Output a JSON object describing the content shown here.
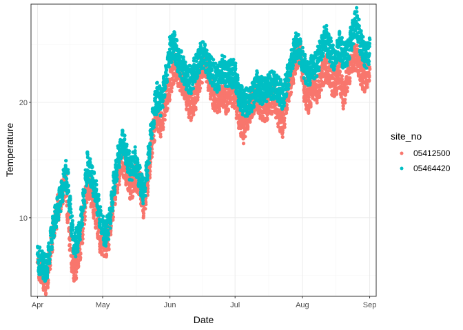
{
  "chart_data": {
    "type": "scatter",
    "xlabel": "Date",
    "ylabel": "Temperature",
    "x_ticks": [
      {
        "date": "2021-04-01",
        "label": "Apr"
      },
      {
        "date": "2021-05-01",
        "label": "May"
      },
      {
        "date": "2021-06-01",
        "label": "Jun"
      },
      {
        "date": "2021-07-01",
        "label": "Jul"
      },
      {
        "date": "2021-08-01",
        "label": "Aug"
      },
      {
        "date": "2021-09-01",
        "label": "Sep"
      }
    ],
    "y_ticks": [
      10,
      20
    ],
    "xlim": [
      "2021-03-29",
      "2021-09-04"
    ],
    "ylim": [
      3.2,
      28.5
    ],
    "grid": true,
    "legend_title": "site_no",
    "legend_position": "right",
    "series": [
      {
        "name": "05412500",
        "color": "#F8766D",
        "points": [
          [
            "2021-04-01",
            6.0
          ],
          [
            "2021-04-03",
            5.3
          ],
          [
            "2021-04-05",
            4.3
          ],
          [
            "2021-04-06",
            5.5
          ],
          [
            "2021-04-08",
            8.5
          ],
          [
            "2021-04-10",
            10.5
          ],
          [
            "2021-04-12",
            12.0
          ],
          [
            "2021-04-14",
            13.0
          ],
          [
            "2021-04-15",
            10.0
          ],
          [
            "2021-04-17",
            6.0
          ],
          [
            "2021-04-18",
            5.5
          ],
          [
            "2021-04-20",
            6.5
          ],
          [
            "2021-04-22",
            9.5
          ],
          [
            "2021-04-24",
            13.0
          ],
          [
            "2021-04-26",
            12.0
          ],
          [
            "2021-04-28",
            10.0
          ],
          [
            "2021-04-30",
            8.0
          ],
          [
            "2021-05-02",
            7.5
          ],
          [
            "2021-05-04",
            8.5
          ],
          [
            "2021-05-06",
            11.5
          ],
          [
            "2021-05-08",
            13.5
          ],
          [
            "2021-05-10",
            15.0
          ],
          [
            "2021-05-12",
            14.0
          ],
          [
            "2021-05-14",
            12.5
          ],
          [
            "2021-05-16",
            13.5
          ],
          [
            "2021-05-18",
            13.0
          ],
          [
            "2021-05-20",
            11.0
          ],
          [
            "2021-05-22",
            13.5
          ],
          [
            "2021-05-24",
            17.0
          ],
          [
            "2021-05-26",
            19.0
          ],
          [
            "2021-05-28",
            18.0
          ],
          [
            "2021-05-30",
            20.0
          ],
          [
            "2021-06-01",
            21.5
          ],
          [
            "2021-06-03",
            23.0
          ],
          [
            "2021-06-05",
            22.5
          ],
          [
            "2021-06-07",
            21.5
          ],
          [
            "2021-06-09",
            20.0
          ],
          [
            "2021-06-11",
            19.5
          ],
          [
            "2021-06-13",
            20.5
          ],
          [
            "2021-06-15",
            22.5
          ],
          [
            "2021-06-17",
            23.5
          ],
          [
            "2021-06-19",
            22.0
          ],
          [
            "2021-06-21",
            20.5
          ],
          [
            "2021-06-23",
            20.0
          ],
          [
            "2021-06-25",
            21.0
          ],
          [
            "2021-06-27",
            20.0
          ],
          [
            "2021-06-29",
            21.0
          ],
          [
            "2021-07-01",
            20.5
          ],
          [
            "2021-07-03",
            18.5
          ],
          [
            "2021-07-05",
            17.5
          ],
          [
            "2021-07-07",
            19.0
          ],
          [
            "2021-07-09",
            20.0
          ],
          [
            "2021-07-11",
            20.5
          ],
          [
            "2021-07-13",
            19.5
          ],
          [
            "2021-07-15",
            19.5
          ],
          [
            "2021-07-17",
            20.0
          ],
          [
            "2021-07-19",
            20.5
          ],
          [
            "2021-07-21",
            19.0
          ],
          [
            "2021-07-23",
            18.0
          ],
          [
            "2021-07-25",
            20.5
          ],
          [
            "2021-07-27",
            22.0
          ],
          [
            "2021-07-29",
            24.0
          ],
          [
            "2021-07-31",
            24.5
          ],
          [
            "2021-08-02",
            21.0
          ],
          [
            "2021-08-04",
            20.0
          ],
          [
            "2021-08-06",
            21.5
          ],
          [
            "2021-08-08",
            21.0
          ],
          [
            "2021-08-10",
            22.5
          ],
          [
            "2021-08-12",
            23.0
          ],
          [
            "2021-08-14",
            22.0
          ],
          [
            "2021-08-16",
            21.5
          ],
          [
            "2021-08-18",
            22.5
          ],
          [
            "2021-08-20",
            20.5
          ],
          [
            "2021-08-22",
            22.5
          ],
          [
            "2021-08-24",
            23.5
          ],
          [
            "2021-08-26",
            24.0
          ],
          [
            "2021-08-28",
            22.5
          ],
          [
            "2021-08-30",
            22.0
          ],
          [
            "2021-09-01",
            23.0
          ]
        ]
      },
      {
        "name": "05464420",
        "color": "#00BFC4",
        "points": [
          [
            "2021-04-01",
            6.5
          ],
          [
            "2021-04-03",
            6.0
          ],
          [
            "2021-04-05",
            5.5
          ],
          [
            "2021-04-06",
            6.5
          ],
          [
            "2021-04-08",
            9.0
          ],
          [
            "2021-04-10",
            10.5
          ],
          [
            "2021-04-12",
            12.0
          ],
          [
            "2021-04-14",
            14.0
          ],
          [
            "2021-04-15",
            13.0
          ],
          [
            "2021-04-17",
            9.0
          ],
          [
            "2021-04-18",
            7.5
          ],
          [
            "2021-04-20",
            8.5
          ],
          [
            "2021-04-22",
            11.0
          ],
          [
            "2021-04-24",
            14.5
          ],
          [
            "2021-04-26",
            13.5
          ],
          [
            "2021-04-28",
            12.0
          ],
          [
            "2021-04-30",
            10.0
          ],
          [
            "2021-05-02",
            8.5
          ],
          [
            "2021-05-04",
            9.5
          ],
          [
            "2021-05-06",
            12.5
          ],
          [
            "2021-05-08",
            15.0
          ],
          [
            "2021-05-10",
            16.5
          ],
          [
            "2021-05-12",
            15.5
          ],
          [
            "2021-05-14",
            14.0
          ],
          [
            "2021-05-16",
            15.0
          ],
          [
            "2021-05-18",
            13.5
          ],
          [
            "2021-05-20",
            12.0
          ],
          [
            "2021-05-22",
            15.0
          ],
          [
            "2021-05-24",
            18.5
          ],
          [
            "2021-05-26",
            20.5
          ],
          [
            "2021-05-28",
            20.0
          ],
          [
            "2021-05-30",
            22.0
          ],
          [
            "2021-06-01",
            24.5
          ],
          [
            "2021-06-03",
            25.0
          ],
          [
            "2021-06-05",
            23.5
          ],
          [
            "2021-06-07",
            23.0
          ],
          [
            "2021-06-09",
            22.0
          ],
          [
            "2021-06-11",
            22.0
          ],
          [
            "2021-06-13",
            23.0
          ],
          [
            "2021-06-15",
            24.0
          ],
          [
            "2021-06-17",
            24.0
          ],
          [
            "2021-06-19",
            23.0
          ],
          [
            "2021-06-21",
            22.5
          ],
          [
            "2021-06-23",
            22.0
          ],
          [
            "2021-06-25",
            23.0
          ],
          [
            "2021-06-27",
            22.5
          ],
          [
            "2021-06-29",
            22.5
          ],
          [
            "2021-07-01",
            22.5
          ],
          [
            "2021-07-03",
            20.5
          ],
          [
            "2021-07-05",
            20.0
          ],
          [
            "2021-07-07",
            20.0
          ],
          [
            "2021-07-09",
            20.5
          ],
          [
            "2021-07-11",
            21.5
          ],
          [
            "2021-07-13",
            21.0
          ],
          [
            "2021-07-15",
            21.0
          ],
          [
            "2021-07-17",
            21.5
          ],
          [
            "2021-07-19",
            21.5
          ],
          [
            "2021-07-21",
            21.0
          ],
          [
            "2021-07-23",
            20.5
          ],
          [
            "2021-07-25",
            22.0
          ],
          [
            "2021-07-27",
            23.5
          ],
          [
            "2021-07-29",
            25.0
          ],
          [
            "2021-07-31",
            24.5
          ],
          [
            "2021-08-02",
            23.0
          ],
          [
            "2021-08-04",
            22.5
          ],
          [
            "2021-08-06",
            23.0
          ],
          [
            "2021-08-08",
            23.5
          ],
          [
            "2021-08-10",
            25.0
          ],
          [
            "2021-08-12",
            25.5
          ],
          [
            "2021-08-14",
            24.5
          ],
          [
            "2021-08-16",
            23.5
          ],
          [
            "2021-08-18",
            25.0
          ],
          [
            "2021-08-20",
            24.0
          ],
          [
            "2021-08-22",
            24.5
          ],
          [
            "2021-08-24",
            26.0
          ],
          [
            "2021-08-26",
            27.0
          ],
          [
            "2021-08-28",
            25.0
          ],
          [
            "2021-08-30",
            24.0
          ],
          [
            "2021-09-01",
            24.5
          ]
        ]
      }
    ]
  }
}
